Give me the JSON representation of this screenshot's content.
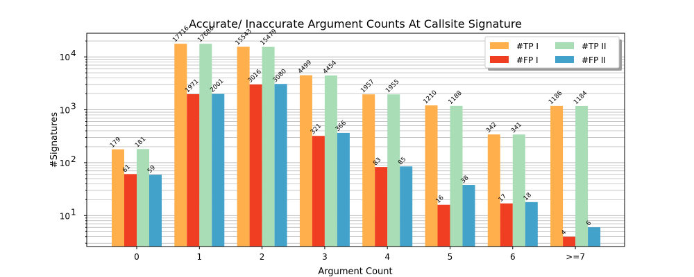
{
  "chart_data": {
    "type": "bar",
    "title": "Accurate/ Inaccurate Argument Counts At Callsite Signature",
    "xlabel": "Argument Count",
    "ylabel": "#Signatures",
    "yscale": "log",
    "ylim": [
      2.6,
      28000
    ],
    "grid": "y-major-and-minor",
    "legend_position": "top-right",
    "categories": [
      "0",
      "1",
      "2",
      "3",
      "4",
      "5",
      "6",
      ">=7"
    ],
    "series": [
      {
        "name": "#TP I",
        "color": "#ffb04d",
        "values": [
          179,
          17716,
          15543,
          4499,
          1957,
          1210,
          342,
          1186
        ]
      },
      {
        "name": "#FP I",
        "color": "#f03e22",
        "values": [
          61,
          1971,
          3016,
          321,
          83,
          16,
          17,
          4
        ]
      },
      {
        "name": "#TP II",
        "color": "#a8ddb5",
        "values": [
          181,
          17686,
          15479,
          4454,
          1955,
          1188,
          341,
          1184
        ]
      },
      {
        "name": "#FP II",
        "color": "#43a2ca",
        "values": [
          59,
          2001,
          3080,
          366,
          85,
          38,
          18,
          6
        ]
      }
    ],
    "y_ticks": [
      {
        "value": 10,
        "label": "10",
        "sup": "1"
      },
      {
        "value": 100,
        "label": "10",
        "sup": "2"
      },
      {
        "value": 1000,
        "label": "10",
        "sup": "3"
      },
      {
        "value": 10000,
        "label": "10",
        "sup": "4"
      }
    ]
  }
}
